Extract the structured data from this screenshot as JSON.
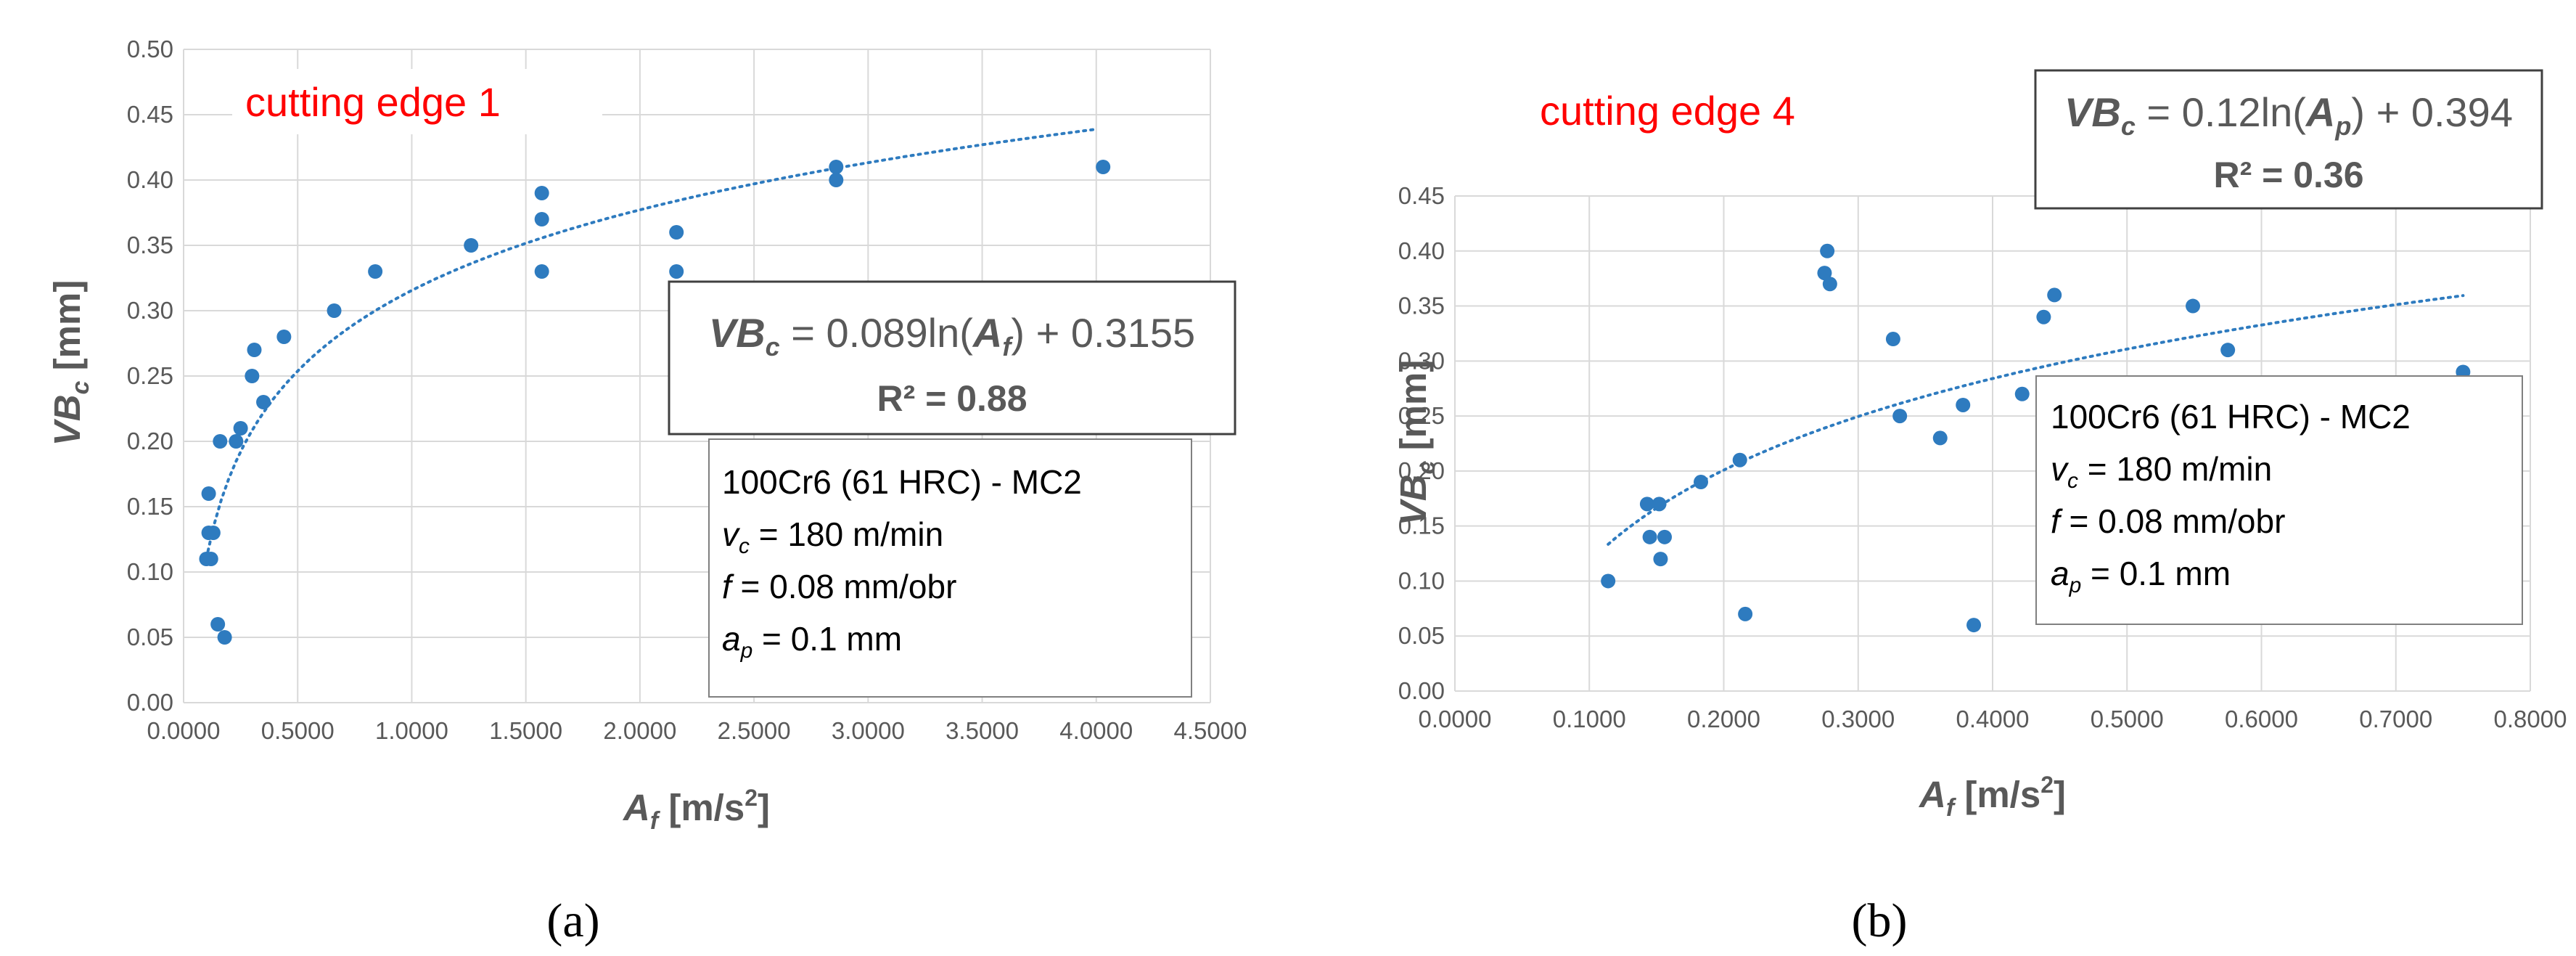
{
  "chart_data": [
    {
      "type": "scatter",
      "panel_label": "(a)",
      "title": "cutting edge 1",
      "xlabel": "A_f [m/s²]",
      "ylabel": "VB_c [mm]",
      "xlim": [
        0,
        4.5
      ],
      "ylim": [
        0,
        0.5
      ],
      "xticks": [
        "0.0000",
        "0.5000",
        "1.0000",
        "1.5000",
        "2.0000",
        "2.5000",
        "3.0000",
        "3.5000",
        "4.0000",
        "4.5000"
      ],
      "yticks": [
        "0.00",
        "0.05",
        "0.10",
        "0.15",
        "0.20",
        "0.25",
        "0.30",
        "0.35",
        "0.40",
        "0.45",
        "0.50"
      ],
      "marker_color": "#2e7bbf",
      "points": [
        [
          0.1,
          0.11
        ],
        [
          0.12,
          0.11
        ],
        [
          0.11,
          0.13
        ],
        [
          0.13,
          0.13
        ],
        [
          0.11,
          0.16
        ],
        [
          0.15,
          0.06
        ],
        [
          0.18,
          0.05
        ],
        [
          0.16,
          0.2
        ],
        [
          0.23,
          0.2
        ],
        [
          0.25,
          0.21
        ],
        [
          0.3,
          0.25
        ],
        [
          0.31,
          0.27
        ],
        [
          0.35,
          0.23
        ],
        [
          0.44,
          0.28
        ],
        [
          0.66,
          0.3
        ],
        [
          0.84,
          0.33
        ],
        [
          1.26,
          0.35
        ],
        [
          1.57,
          0.33
        ],
        [
          1.57,
          0.37
        ],
        [
          1.57,
          0.39
        ],
        [
          2.16,
          0.33
        ],
        [
          2.16,
          0.36
        ],
        [
          2.86,
          0.4
        ],
        [
          2.86,
          0.41
        ],
        [
          4.03,
          0.41
        ]
      ],
      "trendline": {
        "type": "log",
        "a": 0.089,
        "b": 0.3155,
        "x_range": [
          0.1,
          4.0
        ]
      },
      "equation": {
        "lhs": "VB",
        "sub_lhs": "c",
        "middle": " = 0.089ln(",
        "var": "A",
        "sub_var": "f",
        "tail": ") + 0.3155"
      },
      "r2_text": "R² = 0.88",
      "info": {
        "material": "100Cr6  (61 HRC) - MC2",
        "vc_sym": "v",
        "vc_sub": "c",
        "vc_val": " = 180 m/min",
        "f_sym": "f",
        "f_val": " = 0.08 mm/obr",
        "ap_sym": "a",
        "ap_sub": "p",
        "ap_val": " = 0.1 mm"
      }
    },
    {
      "type": "scatter",
      "panel_label": "(b)",
      "title": "cutting edge 4",
      "xlabel": "A_f [m/s²]",
      "ylabel": "VB_c [mm]",
      "xlim": [
        0,
        0.8
      ],
      "ylim": [
        0,
        0.45
      ],
      "xticks": [
        "0.0000",
        "0.1000",
        "0.2000",
        "0.3000",
        "0.4000",
        "0.5000",
        "0.6000",
        "0.7000",
        "0.8000"
      ],
      "yticks": [
        "0.00",
        "0.05",
        "0.10",
        "0.15",
        "0.20",
        "0.25",
        "0.30",
        "0.35",
        "0.40",
        "0.45"
      ],
      "marker_color": "#2e7bbf",
      "points": [
        [
          0.114,
          0.1
        ],
        [
          0.143,
          0.17
        ],
        [
          0.152,
          0.17
        ],
        [
          0.145,
          0.14
        ],
        [
          0.156,
          0.14
        ],
        [
          0.153,
          0.12
        ],
        [
          0.183,
          0.19
        ],
        [
          0.212,
          0.21
        ],
        [
          0.216,
          0.07
        ],
        [
          0.277,
          0.4
        ],
        [
          0.275,
          0.38
        ],
        [
          0.279,
          0.37
        ],
        [
          0.326,
          0.32
        ],
        [
          0.331,
          0.25
        ],
        [
          0.361,
          0.23
        ],
        [
          0.378,
          0.26
        ],
        [
          0.386,
          0.06
        ],
        [
          0.422,
          0.27
        ],
        [
          0.438,
          0.34
        ],
        [
          0.446,
          0.36
        ],
        [
          0.549,
          0.35
        ],
        [
          0.575,
          0.31
        ],
        [
          0.75,
          0.29
        ]
      ],
      "trendline": {
        "type": "log",
        "a": 0.12,
        "b": 0.394,
        "x_range": [
          0.114,
          0.75
        ]
      },
      "equation": {
        "lhs": "VB",
        "sub_lhs": "c",
        "middle": " = 0.12ln(",
        "var": "A",
        "sub_var": "p",
        "tail": ") + 0.394"
      },
      "r2_text": "R² = 0.36",
      "info": {
        "material": "100Cr6  (61 HRC) - MC2",
        "vc_sym": "v",
        "vc_sub": "c",
        "vc_val": " = 180 m/min",
        "f_sym": "f",
        "f_val": " = 0.08 mm/obr",
        "ap_sym": "a",
        "ap_sub": "p",
        "ap_val": " = 0.1 mm"
      }
    }
  ],
  "axis_text": {
    "x_main": "A",
    "x_sub": "f",
    "x_unit": " [m/s",
    "x_sup": "2",
    "x_close": "]",
    "y_main": "VB",
    "y_sub": "c",
    "y_unit": " [mm]"
  }
}
